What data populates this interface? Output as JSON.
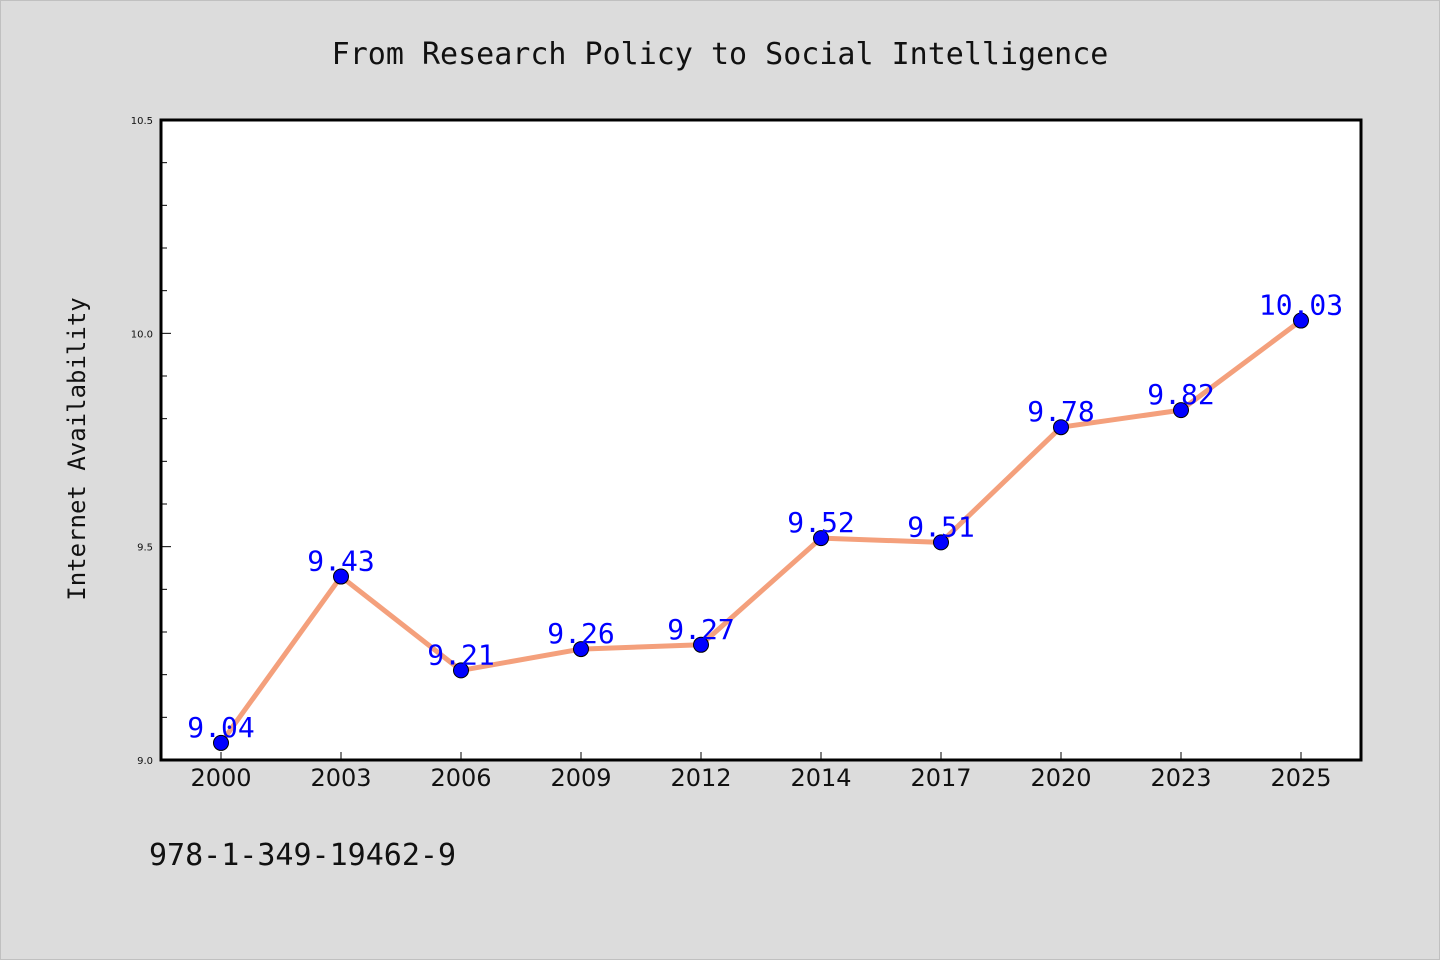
{
  "chart_data": {
    "type": "line",
    "title": "From Research Policy to Social Intelligence",
    "xlabel": "",
    "ylabel": "Internet Availability",
    "categories": [
      "2000",
      "2003",
      "2006",
      "2009",
      "2012",
      "2014",
      "2017",
      "2020",
      "2023",
      "2025"
    ],
    "series": [
      {
        "values": [
          9.04,
          9.43,
          9.21,
          9.26,
          9.27,
          9.52,
          9.51,
          9.78,
          9.82,
          10.03
        ],
        "line_color": "#f4a07c",
        "marker_color": "#0000ff"
      }
    ],
    "data_labels": [
      "9.04",
      "9.43",
      "9.21",
      "9.26",
      "9.27",
      "9.52",
      "9.51",
      "9.78",
      "9.82",
      "10.03"
    ],
    "ylim": [
      9.0,
      10.5
    ],
    "yticks": [
      "9.0",
      "9.5",
      "10.0",
      "10.5"
    ],
    "grid": false,
    "legend": "none",
    "label_color": "#0000ff"
  },
  "footnote": "978-1-349-19462-9"
}
